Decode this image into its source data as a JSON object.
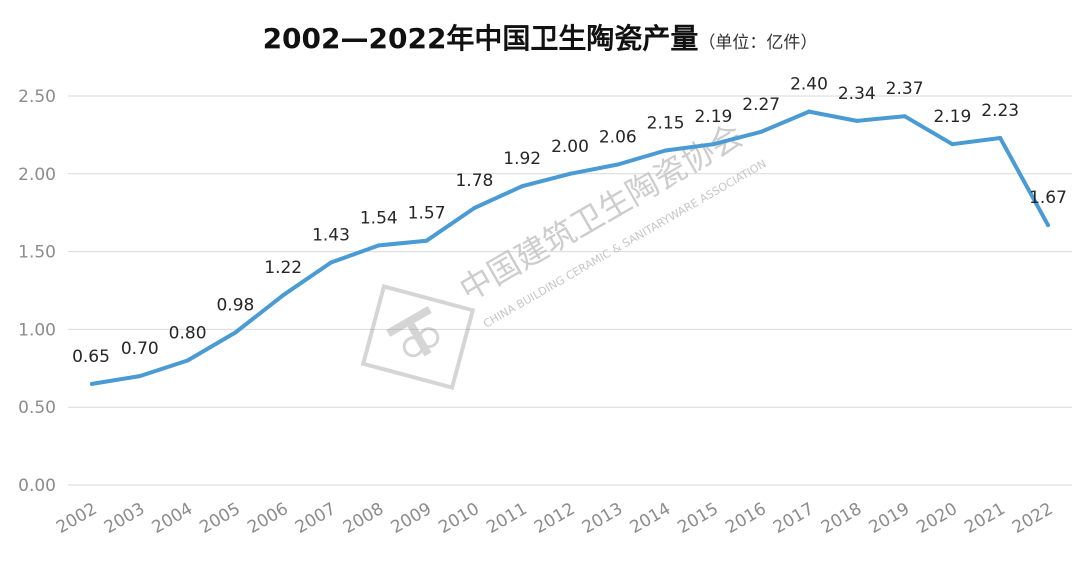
{
  "chart_data": {
    "type": "line",
    "title": "2002—2022年中国卫生陶瓷产量",
    "unit_note": "（单位：亿件）",
    "categories": [
      "2002",
      "2003",
      "2004",
      "2005",
      "2006",
      "2007",
      "2008",
      "2009",
      "2010",
      "2011",
      "2012",
      "2013",
      "2014",
      "2015",
      "2016",
      "2017",
      "2018",
      "2019",
      "2020",
      "2021",
      "2022"
    ],
    "series": [
      {
        "values": [
          0.65,
          0.7,
          0.8,
          0.98,
          1.22,
          1.43,
          1.54,
          1.57,
          1.78,
          1.92,
          2.0,
          2.06,
          2.15,
          2.19,
          2.27,
          2.4,
          2.34,
          2.37,
          2.19,
          2.23,
          1.67
        ],
        "labels": [
          "0.65",
          "0.70",
          "0.80",
          "0.98",
          "1.22",
          "1.43",
          "1.54",
          "1.57",
          "1.78",
          "1.92",
          "2.00",
          "2.06",
          "2.15",
          "2.19",
          "2.27",
          "2.40",
          "2.34",
          "2.37",
          "2.19",
          "2.23",
          "1.67"
        ]
      }
    ],
    "ylim": [
      0,
      2.5
    ],
    "yticks": [
      "0.00",
      "0.50",
      "1.00",
      "1.50",
      "2.00",
      "2.50"
    ],
    "grid": true,
    "colors": {
      "line": "#4a9bd4",
      "grid": "#d9d9d9",
      "tick_text": "#8c8c8c",
      "label_text": "#262626",
      "title_text": "#111111"
    }
  },
  "watermark": {
    "cn": "中国建筑卫生陶瓷协会",
    "en": "CHINA BUILDING CERAMIC & SANITARYWARE ASSOCIATION"
  }
}
